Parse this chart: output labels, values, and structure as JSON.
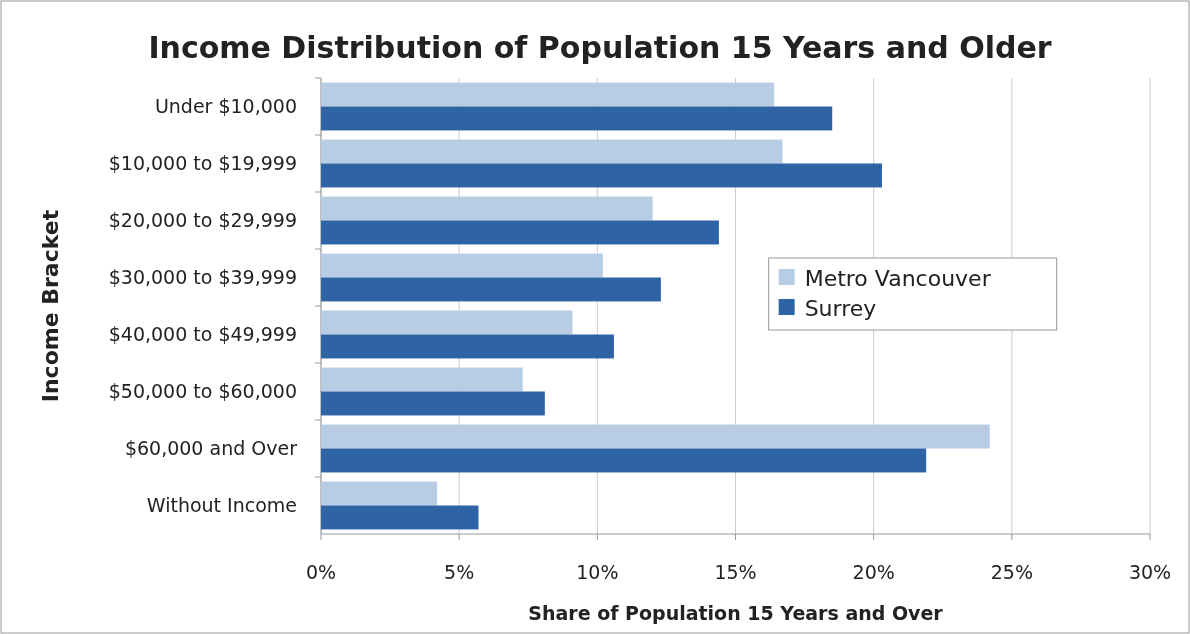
{
  "chart_data": {
    "type": "bar",
    "orientation": "horizontal",
    "title": "Income Distribution of Population 15 Years and Older",
    "xlabel": "Share of Population 15 Years and Over",
    "ylabel": "Income Bracket",
    "categories": [
      "Under $10,000",
      "$10,000 to $19,999",
      "$20,000 to $29,999",
      "$30,000 to $39,999",
      "$40,000 to $49,999",
      "$50,000 to $60,000",
      "$60,000 and Over",
      "Without Income"
    ],
    "series": [
      {
        "name": "Metro Vancouver",
        "color": "#b8cce4",
        "values": [
          16.4,
          16.7,
          12.0,
          10.2,
          9.1,
          7.3,
          24.2,
          4.2
        ]
      },
      {
        "name": "Surrey",
        "color": "#2e63a4",
        "values": [
          18.5,
          20.3,
          14.4,
          12.3,
          10.6,
          8.1,
          21.9,
          5.7
        ]
      }
    ],
    "xlim": [
      0,
      30
    ],
    "xticks": [
      {
        "value": 0,
        "label": "0%"
      },
      {
        "value": 5,
        "label": "5%"
      },
      {
        "value": 10,
        "label": "10%"
      },
      {
        "value": 15,
        "label": "15%"
      },
      {
        "value": 20,
        "label": "20%"
      },
      {
        "value": 25,
        "label": "25%"
      },
      {
        "value": 30,
        "label": "30%"
      }
    ],
    "grid": "x",
    "legend": "right"
  }
}
